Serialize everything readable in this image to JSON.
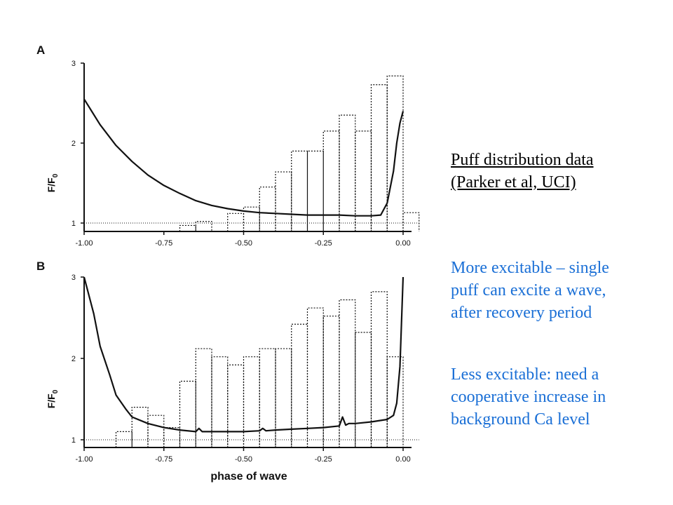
{
  "side_text": {
    "title_line1": "Puff distribution data",
    "title_line2": "(Parker et al, UCI)",
    "more_line1": "More excitable – single",
    "more_line2": "puff can excite a wave,",
    "more_line3": "after recovery period",
    "less_line1": "Less excitable: need a",
    "less_line2": "cooperative increase in",
    "less_line3": "background Ca level"
  },
  "colors": {
    "text": "#000000",
    "accent_text": "#1a6fd6",
    "ink": "#111111"
  },
  "chart_data": [
    {
      "type": "bar",
      "panel_label": "A",
      "xlabel": "",
      "ylabel": "F/F",
      "ylabel_sub": "0",
      "xlim": [
        -1.0,
        0.0
      ],
      "ylim": [
        0.95,
        3.0
      ],
      "xticks": [
        "-1.00",
        "-0.75",
        "-0.50",
        "-0.25",
        "0.00"
      ],
      "xtick_values": [
        -1.0,
        -0.75,
        -0.5,
        -0.25,
        0.0
      ],
      "yticks": [
        "1",
        "2",
        "3"
      ],
      "ytick_values": [
        1,
        2,
        3
      ],
      "baseline": 1.0,
      "bar_style": "dotted-outline",
      "bins": [
        {
          "x0": -0.7,
          "x1": -0.65,
          "value": 0.97
        },
        {
          "x0": -0.65,
          "x1": -0.6,
          "value": 1.02
        },
        {
          "x0": -0.55,
          "x1": -0.5,
          "value": 1.12
        },
        {
          "x0": -0.5,
          "x1": -0.45,
          "value": 1.2
        },
        {
          "x0": -0.45,
          "x1": -0.4,
          "value": 1.45
        },
        {
          "x0": -0.4,
          "x1": -0.35,
          "value": 1.64
        },
        {
          "x0": -0.35,
          "x1": -0.3,
          "value": 1.9
        },
        {
          "x0": -0.3,
          "x1": -0.25,
          "value": 1.9
        },
        {
          "x0": -0.25,
          "x1": -0.2,
          "value": 2.15
        },
        {
          "x0": -0.2,
          "x1": -0.15,
          "value": 2.35
        },
        {
          "x0": -0.15,
          "x1": -0.1,
          "value": 2.15
        },
        {
          "x0": -0.1,
          "x1": -0.05,
          "value": 2.73
        },
        {
          "x0": -0.05,
          "x1": 0.0,
          "value": 2.84
        },
        {
          "x0": 0.0,
          "x1": 0.05,
          "value": 1.13
        }
      ],
      "series": [
        {
          "x": [
            -1.0,
            -0.95,
            -0.9,
            -0.85,
            -0.8,
            -0.75,
            -0.7,
            -0.65,
            -0.6,
            -0.55,
            -0.5,
            -0.45,
            -0.4,
            -0.35,
            -0.3,
            -0.25,
            -0.2,
            -0.15,
            -0.1,
            -0.07,
            -0.05,
            -0.03,
            -0.02,
            -0.01,
            0.0
          ],
          "y": [
            2.55,
            2.23,
            1.97,
            1.77,
            1.6,
            1.47,
            1.37,
            1.28,
            1.22,
            1.18,
            1.15,
            1.13,
            1.12,
            1.11,
            1.1,
            1.1,
            1.1,
            1.09,
            1.09,
            1.1,
            1.25,
            1.65,
            2.0,
            2.25,
            2.4
          ]
        }
      ]
    },
    {
      "type": "bar",
      "panel_label": "B",
      "xlabel": "phase of wave",
      "ylabel": "F/F",
      "ylabel_sub": "0",
      "xlim": [
        -1.0,
        0.0
      ],
      "ylim": [
        0.95,
        3.0
      ],
      "xticks": [
        "-1.00",
        "-0.75",
        "-0.50",
        "-0.25",
        "0.00"
      ],
      "xtick_values": [
        -1.0,
        -0.75,
        -0.5,
        -0.25,
        0.0
      ],
      "yticks": [
        "1",
        "2",
        "3"
      ],
      "ytick_values": [
        1,
        2,
        3
      ],
      "baseline": 1.0,
      "bar_style": "dotted-outline",
      "bins": [
        {
          "x0": -0.9,
          "x1": -0.85,
          "value": 1.1
        },
        {
          "x0": -0.85,
          "x1": -0.8,
          "value": 1.4
        },
        {
          "x0": -0.8,
          "x1": -0.75,
          "value": 1.3
        },
        {
          "x0": -0.75,
          "x1": -0.7,
          "value": 1.15
        },
        {
          "x0": -0.7,
          "x1": -0.65,
          "value": 1.72
        },
        {
          "x0": -0.65,
          "x1": -0.6,
          "value": 2.12
        },
        {
          "x0": -0.6,
          "x1": -0.55,
          "value": 2.02
        },
        {
          "x0": -0.55,
          "x1": -0.5,
          "value": 1.92
        },
        {
          "x0": -0.5,
          "x1": -0.45,
          "value": 2.02
        },
        {
          "x0": -0.45,
          "x1": -0.4,
          "value": 2.12
        },
        {
          "x0": -0.4,
          "x1": -0.35,
          "value": 2.12
        },
        {
          "x0": -0.35,
          "x1": -0.3,
          "value": 2.42
        },
        {
          "x0": -0.3,
          "x1": -0.25,
          "value": 2.62
        },
        {
          "x0": -0.25,
          "x1": -0.2,
          "value": 2.52
        },
        {
          "x0": -0.2,
          "x1": -0.15,
          "value": 2.72
        },
        {
          "x0": -0.15,
          "x1": -0.1,
          "value": 2.32
        },
        {
          "x0": -0.1,
          "x1": -0.05,
          "value": 2.82
        },
        {
          "x0": -0.05,
          "x1": 0.0,
          "value": 2.02
        }
      ],
      "series": [
        {
          "x": [
            -1.0,
            -0.97,
            -0.95,
            -0.92,
            -0.9,
            -0.87,
            -0.85,
            -0.8,
            -0.75,
            -0.7,
            -0.65,
            -0.64,
            -0.63,
            -0.6,
            -0.55,
            -0.5,
            -0.45,
            -0.44,
            -0.43,
            -0.4,
            -0.35,
            -0.3,
            -0.25,
            -0.2,
            -0.19,
            -0.18,
            -0.17,
            -0.15,
            -0.1,
            -0.05,
            -0.03,
            -0.02,
            -0.01,
            0.0
          ],
          "y": [
            3.0,
            2.55,
            2.15,
            1.8,
            1.55,
            1.38,
            1.28,
            1.2,
            1.15,
            1.12,
            1.1,
            1.14,
            1.1,
            1.1,
            1.1,
            1.1,
            1.11,
            1.14,
            1.11,
            1.12,
            1.13,
            1.14,
            1.15,
            1.17,
            1.28,
            1.18,
            1.2,
            1.2,
            1.22,
            1.25,
            1.3,
            1.45,
            1.9,
            3.0
          ]
        }
      ]
    }
  ]
}
